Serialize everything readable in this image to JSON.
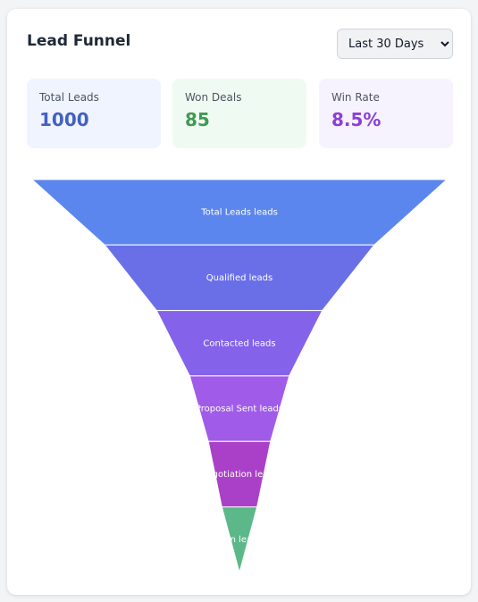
{
  "header": {
    "title": "Lead Funnel",
    "range_selected": "Last 30 Days"
  },
  "stats": [
    {
      "label": "Total Leads",
      "value": "1000",
      "color": "#4360c4",
      "bg": "#eff4fe"
    },
    {
      "label": "Won Deals",
      "value": "85",
      "color": "#3f9a52",
      "bg": "#effbf2"
    },
    {
      "label": "Win Rate",
      "value": "8.5%",
      "color": "#8a3fd6",
      "bg": "#f7f3fe"
    }
  ],
  "chart_data": {
    "type": "funnel",
    "stages": [
      {
        "label": "Total Leads leads",
        "value": 1000,
        "color": "#5b86ee"
      },
      {
        "label": "Qualified leads",
        "value": 650,
        "color": "#6a6fe8"
      },
      {
        "label": "Contacted leads",
        "value": 400,
        "color": "#8463ea"
      },
      {
        "label": "Proposal Sent leads",
        "value": 240,
        "color": "#a05ce8"
      },
      {
        "label": "Negotiation leads",
        "value": 150,
        "color": "#aa40c8"
      },
      {
        "label": "Won leads",
        "value": 85,
        "color": "#5cb888"
      }
    ]
  }
}
